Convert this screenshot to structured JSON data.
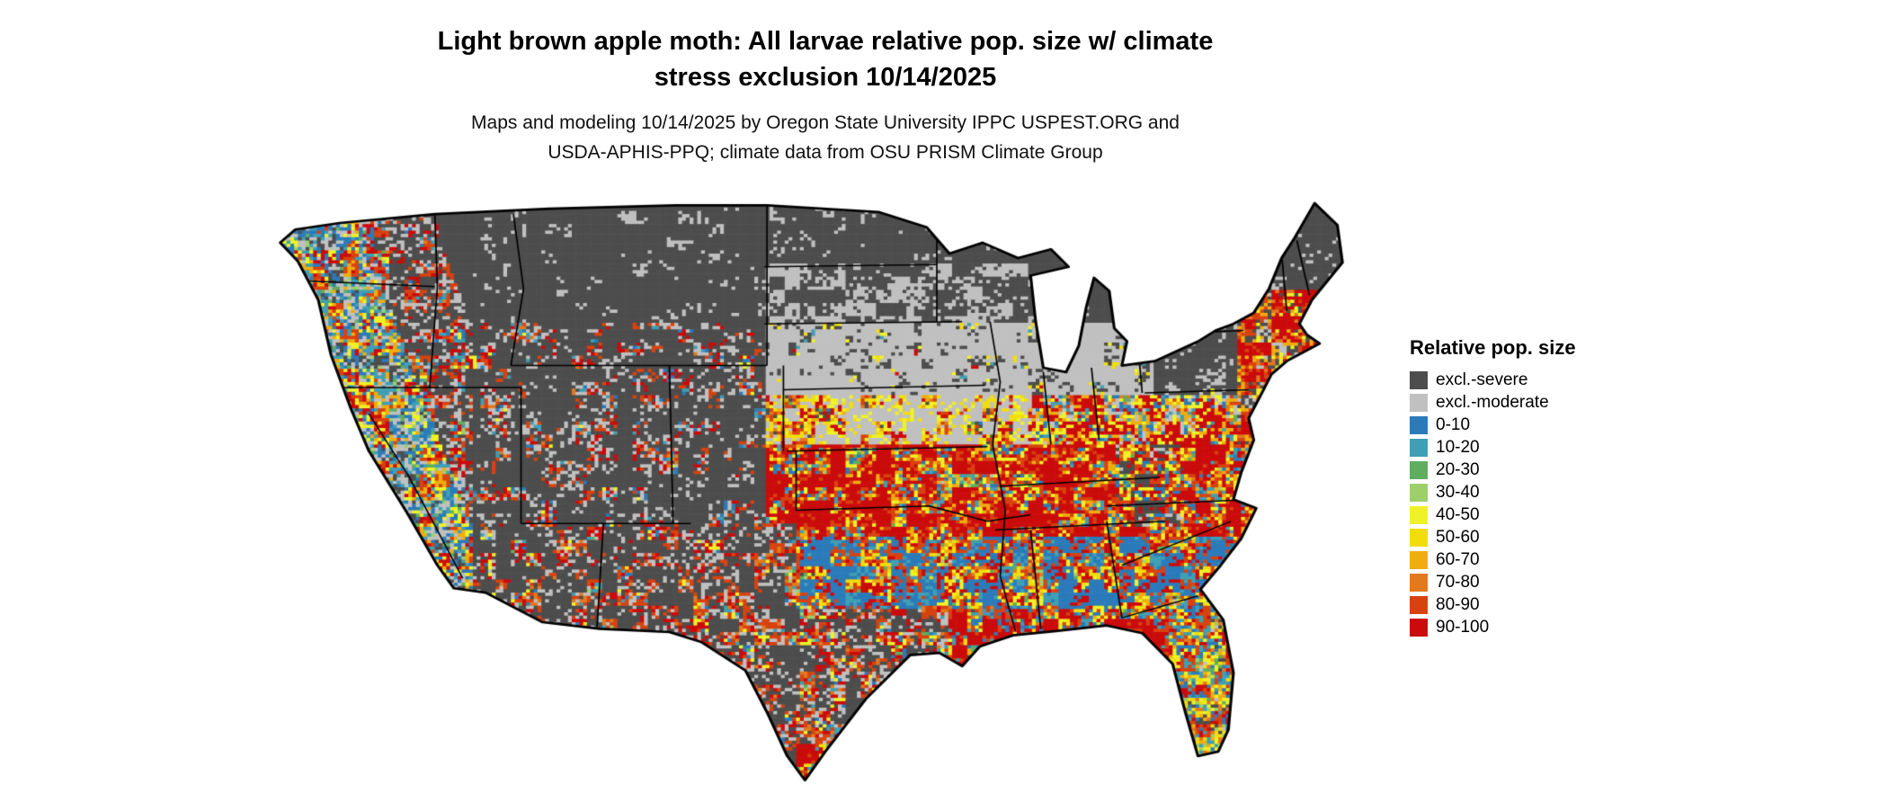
{
  "figure": {
    "title_line1": "Light brown apple moth: All larvae relative pop. size w/ climate",
    "title_line2": "stress exclusion 10/14/2025",
    "credit_line1": "Maps and modeling 10/14/2025 by Oregon State University IPPC USPEST.ORG and",
    "credit_line2": "USDA-APHIS-PPQ; climate data from OSU PRISM Climate Group",
    "background": "#ffffff"
  },
  "map": {
    "region": "contiguous-united-states",
    "border_color": "#000000"
  },
  "legend": {
    "title": "Relative pop. size",
    "items": [
      {
        "label": "excl.-severe",
        "color": "#4d4d4d"
      },
      {
        "label": "excl.-moderate",
        "color": "#c0c0c0"
      },
      {
        "label": "0-10",
        "color": "#2b7bba"
      },
      {
        "label": "10-20",
        "color": "#3f9fb5"
      },
      {
        "label": "20-30",
        "color": "#5fae5f"
      },
      {
        "label": "30-40",
        "color": "#9ed06a"
      },
      {
        "label": "40-50",
        "color": "#eff227"
      },
      {
        "label": "50-60",
        "color": "#f2dd0c"
      },
      {
        "label": "60-70",
        "color": "#f0ad0f"
      },
      {
        "label": "70-80",
        "color": "#e2791e"
      },
      {
        "label": "80-90",
        "color": "#d8420f"
      },
      {
        "label": "90-100",
        "color": "#cb0b0b"
      }
    ]
  }
}
